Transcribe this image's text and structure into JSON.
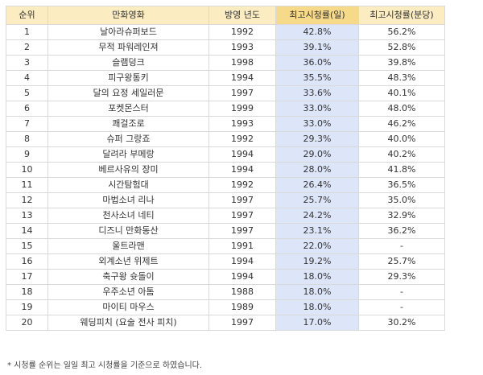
{
  "table": {
    "headers": [
      "순위",
      "만화영화",
      "방영 년도",
      "최고시청률(일)",
      "최고시청률(분당)"
    ],
    "rows": [
      [
        "1",
        "날아라슈퍼보드",
        "1992",
        "42.8%",
        "56.2%"
      ],
      [
        "2",
        "무적 파워레인져",
        "1993",
        "39.1%",
        "52.8%"
      ],
      [
        "3",
        "슬램덩크",
        "1998",
        "36.0%",
        "39.8%"
      ],
      [
        "4",
        "피구왕통키",
        "1994",
        "35.5%",
        "48.3%"
      ],
      [
        "5",
        "달의 요정 세일러문",
        "1997",
        "33.6%",
        "40.1%"
      ],
      [
        "6",
        "포켓몬스터",
        "1999",
        "33.0%",
        "48.0%"
      ],
      [
        "7",
        "쾌걸조로",
        "1993",
        "33.0%",
        "46.2%"
      ],
      [
        "8",
        "슈퍼 그랑죠",
        "1992",
        "29.3%",
        "40.0%"
      ],
      [
        "9",
        "달려라 부메랑",
        "1994",
        "29.0%",
        "40.2%"
      ],
      [
        "10",
        "베르사유의 장미",
        "1994",
        "28.0%",
        "41.8%"
      ],
      [
        "11",
        "시간탐험대",
        "1992",
        "26.4%",
        "36.5%"
      ],
      [
        "12",
        "마법소녀 리나",
        "1997",
        "25.7%",
        "35.0%"
      ],
      [
        "13",
        "천사소녀 네티",
        "1997",
        "24.2%",
        "32.9%"
      ],
      [
        "14",
        "디즈니 만화동산",
        "1997",
        "23.1%",
        "36.2%"
      ],
      [
        "15",
        "울트라맨",
        "1991",
        "22.0%",
        "-"
      ],
      [
        "16",
        "외계소년 위제트",
        "1994",
        "19.2%",
        "25.7%"
      ],
      [
        "17",
        "축구왕 슛돌이",
        "1994",
        "18.0%",
        "29.3%"
      ],
      [
        "18",
        "우주소년 아톰",
        "1988",
        "18.0%",
        "-"
      ],
      [
        "19",
        "마이티 마우스",
        "1989",
        "18.0%",
        "-"
      ],
      [
        "20",
        "웨딩피치 (요술 전사 피치)",
        "1997",
        "17.0%",
        "30.2%"
      ]
    ]
  },
  "footnote": "* 시청률 순위는 일일 최고 시청률을 기준으로 하였습니다.",
  "colors": {
    "header_bg": "#fbecc2",
    "highlight_header_bg": "#f7d98a",
    "highlight_column_bg": "#dde5f8",
    "border": "#d9d9d9"
  }
}
